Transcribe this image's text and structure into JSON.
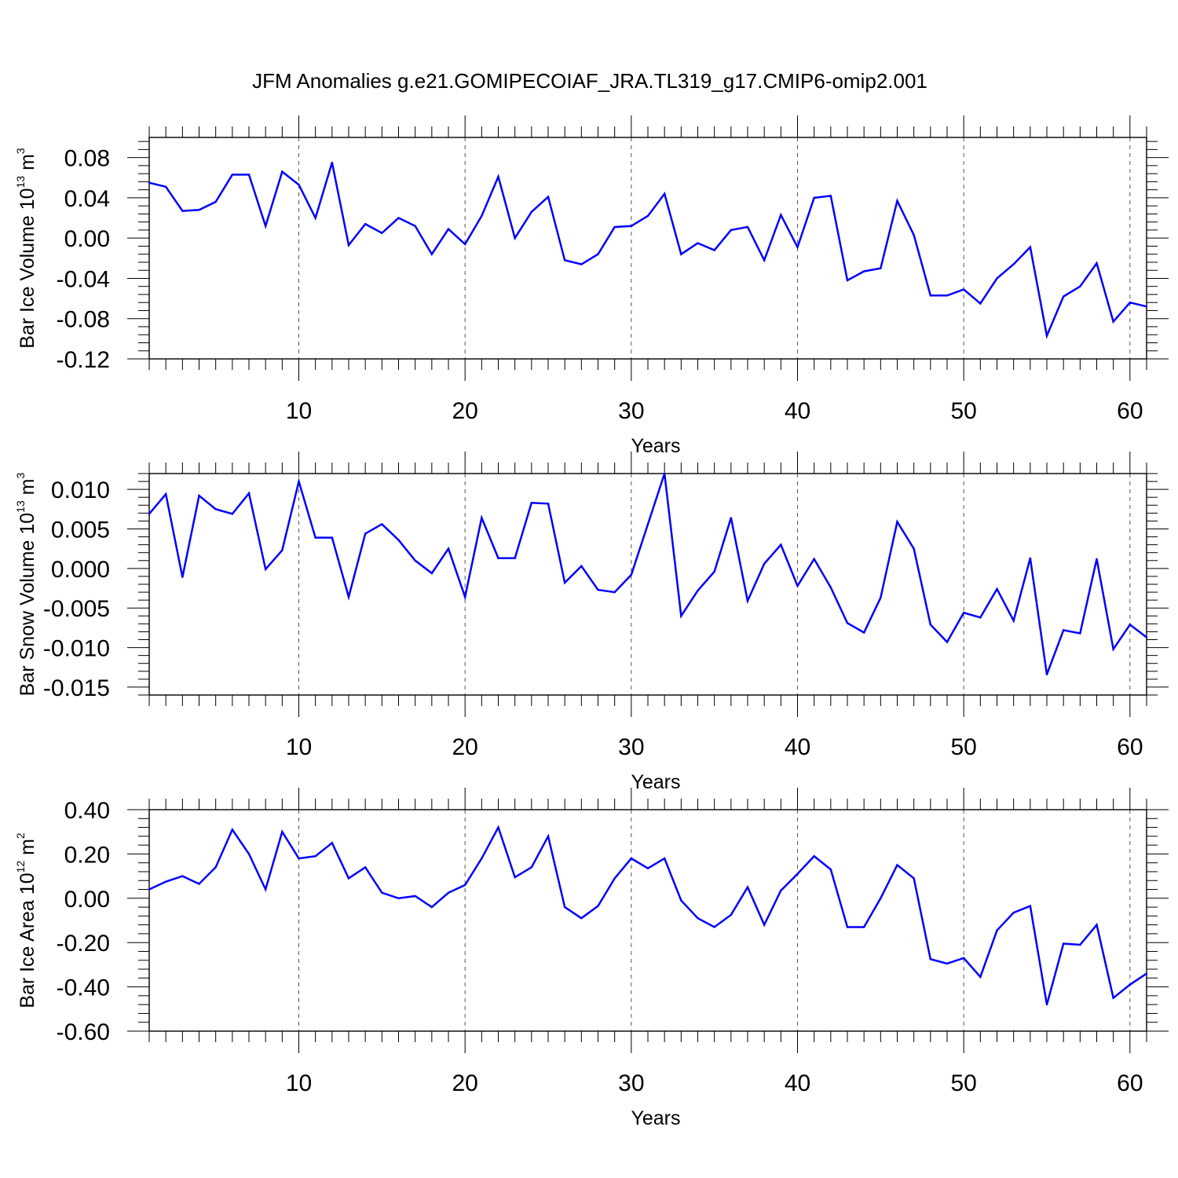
{
  "title": "JFM Anomalies g.e21.GOMIPECOIAF_JRA.TL319_g17.CMIP6-omip2.001",
  "line_color": "#0000ff",
  "chart_data": [
    {
      "type": "line",
      "title": "",
      "xlabel": "Years",
      "ylabel": {
        "text": "Bar Ice Volume 10",
        "exp": "13",
        "unit": " m",
        "unit_exp": "3"
      },
      "xlim": [
        1,
        61
      ],
      "ylim": [
        -0.12,
        0.1
      ],
      "x_ticks": [
        10,
        20,
        30,
        40,
        50,
        60
      ],
      "x_tick_labels": [
        "10",
        "20",
        "30",
        "40",
        "50",
        "60"
      ],
      "y_ticks": [
        -0.12,
        -0.08,
        -0.04,
        0.0,
        0.04,
        0.08
      ],
      "y_tick_labels": [
        "-0.12",
        "-0.08",
        "-0.04",
        "0.00",
        "0.04",
        "0.08"
      ],
      "grid": "dashed vertical lines at major x ticks",
      "series": [
        {
          "values": [
            0.055,
            0.051,
            0.027,
            0.028,
            0.036,
            0.063,
            0.063,
            0.012,
            0.066,
            0.053,
            0.02,
            0.075,
            -0.007,
            0.014,
            0.005,
            0.02,
            0.012,
            -0.016,
            0.009,
            -0.006,
            0.022,
            0.061,
            0.0,
            0.026,
            0.041,
            -0.022,
            -0.026,
            -0.016,
            0.011,
            0.012,
            0.022,
            0.044,
            -0.016,
            -0.005,
            -0.012,
            0.008,
            0.011,
            -0.022,
            0.023,
            -0.009,
            0.04,
            0.042,
            -0.042,
            -0.033,
            -0.03,
            0.037,
            0.003,
            -0.057,
            -0.057,
            -0.051,
            -0.065,
            -0.04,
            -0.026,
            -0.009,
            -0.097,
            -0.058,
            -0.048,
            -0.025,
            -0.083,
            -0.064,
            -0.068
          ]
        }
      ]
    },
    {
      "type": "line",
      "title": "",
      "xlabel": "Years",
      "ylabel": {
        "text": "Bar Snow Volume 10",
        "exp": "13",
        "unit": " m",
        "unit_exp": "3"
      },
      "xlim": [
        1,
        61
      ],
      "ylim": [
        -0.016,
        0.012
      ],
      "x_ticks": [
        10,
        20,
        30,
        40,
        50,
        60
      ],
      "x_tick_labels": [
        "10",
        "20",
        "30",
        "40",
        "50",
        "60"
      ],
      "y_ticks": [
        -0.015,
        -0.01,
        -0.005,
        0.0,
        0.005,
        0.01
      ],
      "y_tick_labels": [
        "-0.015",
        "-0.010",
        "-0.005",
        "0.000",
        "0.005",
        "0.010"
      ],
      "grid": "dashed vertical lines at major x ticks",
      "series": [
        {
          "values": [
            0.0069,
            0.0094,
            -0.0011,
            0.0092,
            0.0075,
            0.0069,
            0.0095,
            -0.0001,
            0.0023,
            0.011,
            0.0039,
            0.0039,
            -0.0036,
            0.0044,
            0.0056,
            0.0036,
            0.001,
            -0.0006,
            0.0025,
            -0.0036,
            0.0064,
            0.0013,
            0.0013,
            0.0083,
            0.0082,
            -0.0018,
            0.0003,
            -0.0027,
            -0.003,
            -0.0008,
            0.0056,
            0.012,
            -0.006,
            -0.0028,
            -0.0004,
            0.0064,
            -0.0041,
            0.0006,
            0.003,
            -0.0022,
            0.0012,
            -0.0024,
            -0.0069,
            -0.0081,
            -0.0037,
            0.0059,
            0.0025,
            -0.0071,
            -0.0093,
            -0.0056,
            -0.0062,
            -0.0026,
            -0.0066,
            0.0013,
            -0.0134,
            -0.0078,
            -0.0082,
            0.0012,
            -0.0102,
            -0.0071,
            -0.0087
          ]
        }
      ]
    },
    {
      "type": "line",
      "title": "",
      "xlabel": "Years",
      "ylabel": {
        "text": "Bar Ice Area 10",
        "exp": "12",
        "unit": " m",
        "unit_exp": "2"
      },
      "xlim": [
        1,
        61
      ],
      "ylim": [
        -0.6,
        0.4
      ],
      "x_ticks": [
        10,
        20,
        30,
        40,
        50,
        60
      ],
      "x_tick_labels": [
        "10",
        "20",
        "30",
        "40",
        "50",
        "60"
      ],
      "y_ticks": [
        -0.6,
        -0.4,
        -0.2,
        0.0,
        0.2,
        0.4
      ],
      "y_tick_labels": [
        "-0.60",
        "-0.40",
        "-0.20",
        "0.00",
        "0.20",
        "0.40"
      ],
      "grid": "dashed vertical lines at major x ticks",
      "series": [
        {
          "values": [
            0.04,
            0.075,
            0.1,
            0.065,
            0.14,
            0.31,
            0.2,
            0.04,
            0.3,
            0.18,
            0.19,
            0.25,
            0.09,
            0.14,
            0.025,
            0.0,
            0.01,
            -0.04,
            0.025,
            0.06,
            0.18,
            0.32,
            0.095,
            0.14,
            0.28,
            -0.04,
            -0.09,
            -0.035,
            0.09,
            0.18,
            0.135,
            0.18,
            -0.01,
            -0.09,
            -0.13,
            -0.075,
            0.05,
            -0.12,
            0.035,
            0.11,
            0.19,
            0.13,
            -0.13,
            -0.13,
            0.0,
            0.15,
            0.09,
            -0.275,
            -0.295,
            -0.27,
            -0.355,
            -0.145,
            -0.065,
            -0.035,
            -0.48,
            -0.205,
            -0.21,
            -0.12,
            -0.45,
            -0.39,
            -0.34
          ]
        }
      ]
    }
  ]
}
